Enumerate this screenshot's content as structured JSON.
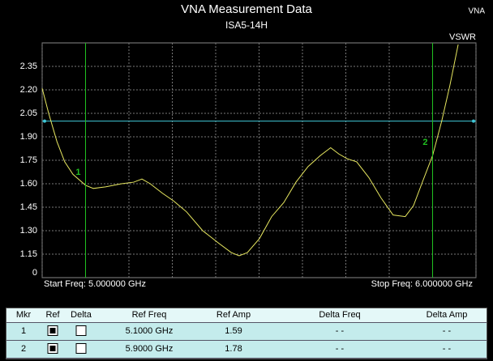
{
  "badge": "VNA",
  "chart_data": {
    "type": "line",
    "title": "VNA Measurement Data",
    "subtitle": "ISA5-14H",
    "y_label": "VSWR",
    "start_label": "Start Freq: 5.000000 GHz",
    "stop_label": "Stop Freq: 6.000000 GHz",
    "y_origin_label": "0",
    "xlim": [
      5.0,
      6.0
    ],
    "xticks": [
      5.0,
      5.1,
      5.2,
      5.3,
      5.4,
      5.5,
      5.6,
      5.7,
      5.8,
      5.9,
      6.0
    ],
    "ylim": [
      1.0,
      2.5
    ],
    "yticks": [
      {
        "value": 1.3,
        "label": "1.30"
      },
      1.15,
      1.45,
      {
        "value": 1.6,
        "label": "1.60"
      },
      1.75,
      {
        "value": 1.9,
        "label": "1.90"
      },
      2.05,
      {
        "value": 2.2,
        "label": "2.20"
      },
      2.35
    ],
    "grid": true,
    "limit_line": {
      "value": 2.0,
      "color": "#40c8d8"
    },
    "marker_color": "#20c020",
    "markers": [
      {
        "label": "1",
        "x": 5.1
      },
      {
        "label": "2",
        "x": 5.9
      }
    ],
    "series": [
      {
        "name": "VSWR",
        "color": "#e8e860",
        "x": [
          5.0,
          5.015,
          5.034,
          5.052,
          5.071,
          5.1,
          5.118,
          5.146,
          5.183,
          5.211,
          5.23,
          5.249,
          5.277,
          5.303,
          5.333,
          5.37,
          5.407,
          5.436,
          5.454,
          5.473,
          5.501,
          5.529,
          5.557,
          5.585,
          5.613,
          5.641,
          5.665,
          5.684,
          5.703,
          5.725,
          5.753,
          5.781,
          5.809,
          5.837,
          5.856,
          5.875,
          5.9,
          5.921,
          5.94,
          5.959
        ],
        "values": [
          2.21,
          2.05,
          1.87,
          1.74,
          1.66,
          1.59,
          1.57,
          1.58,
          1.6,
          1.61,
          1.63,
          1.6,
          1.54,
          1.49,
          1.42,
          1.3,
          1.22,
          1.16,
          1.14,
          1.16,
          1.25,
          1.39,
          1.48,
          1.61,
          1.71,
          1.78,
          1.83,
          1.79,
          1.76,
          1.74,
          1.64,
          1.51,
          1.4,
          1.39,
          1.46,
          1.6,
          1.78,
          2.0,
          2.23,
          2.49
        ]
      }
    ]
  },
  "marker_table": {
    "columns": [
      "Mkr",
      "Ref",
      "Delta",
      "Ref Freq",
      "Ref Amp",
      "Delta Freq",
      "Delta Amp"
    ],
    "rows": [
      {
        "mkr": "1",
        "ref": true,
        "delta": false,
        "ref_freq": "5.1000 GHz",
        "ref_amp": "1.59",
        "delta_freq": "- -",
        "delta_amp": "- -"
      },
      {
        "mkr": "2",
        "ref": true,
        "delta": false,
        "ref_freq": "5.9000 GHz",
        "ref_amp": "1.78",
        "delta_freq": "- -",
        "delta_amp": "- -"
      }
    ]
  }
}
